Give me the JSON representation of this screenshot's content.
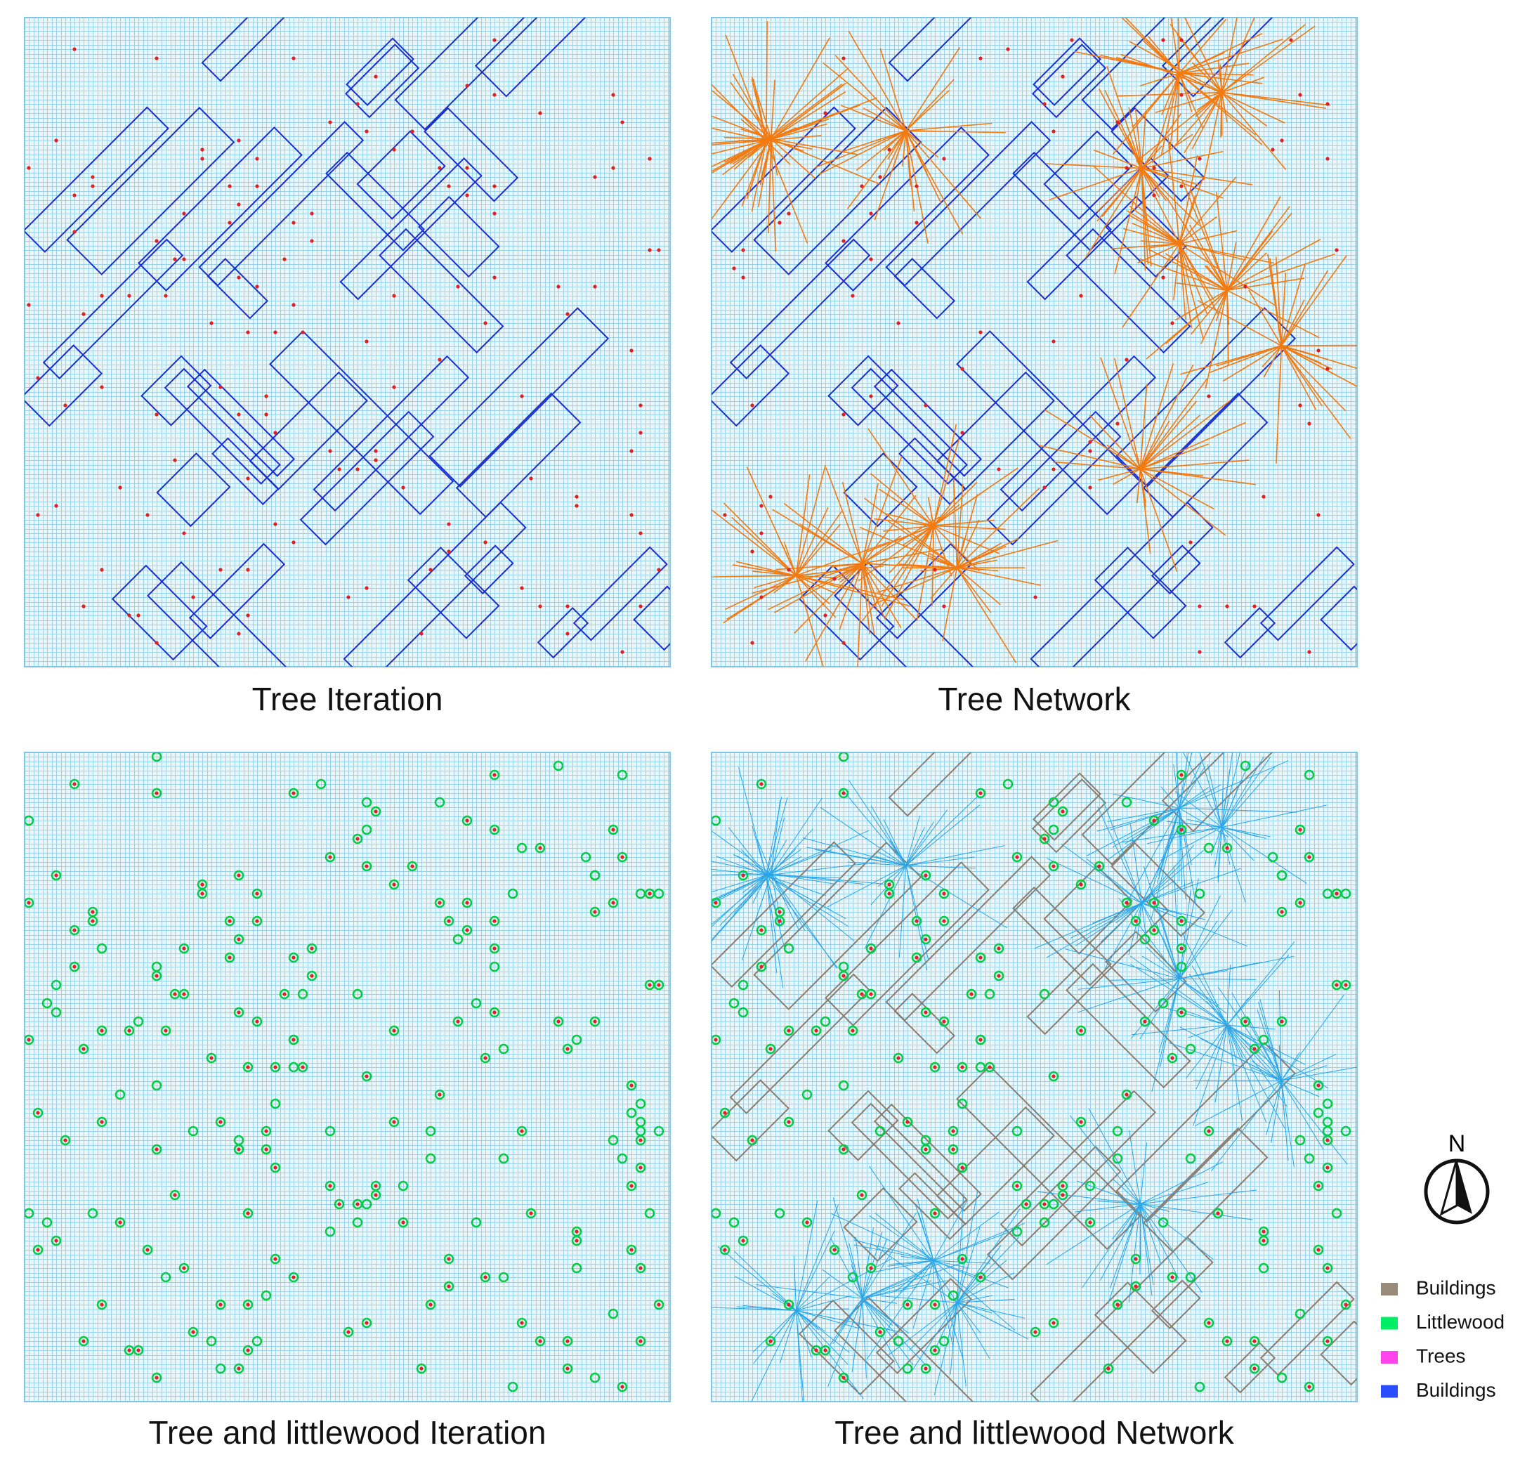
{
  "panels": [
    {
      "title": "Tree Iteration"
    },
    {
      "title": "Tree Network"
    },
    {
      "title": "Tree and littlewood Iteration"
    },
    {
      "title": "Tree and littlewood Network"
    }
  ],
  "north_arrow": {
    "label": "N"
  },
  "legend": {
    "items": [
      {
        "label": "Buildings",
        "color": "#9a8a7a"
      },
      {
        "label": "Littlewood",
        "color": "#00ee66"
      },
      {
        "label": "Trees",
        "color": "#ff44ee"
      },
      {
        "label": "Buildings",
        "color": "#2a4cff"
      }
    ]
  }
}
